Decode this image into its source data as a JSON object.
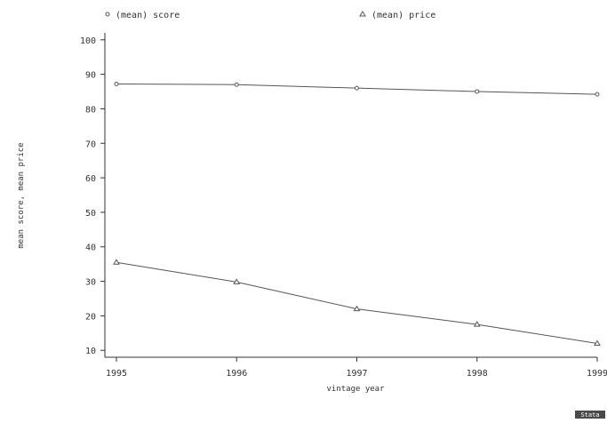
{
  "chart_data": {
    "type": "line",
    "xlabel": "vintage year",
    "ylabel": "mean score, mean price",
    "x": [
      1995,
      1996,
      1997,
      1998,
      1999
    ],
    "x_ticks": [
      "1995",
      "1996",
      "1997",
      "1998",
      "1999"
    ],
    "y_ticks": [
      "10",
      "20",
      "30",
      "40",
      "50",
      "60",
      "70",
      "80",
      "90",
      "100"
    ],
    "ylim": [
      8,
      102
    ],
    "xlim": [
      1995,
      1999
    ],
    "grid": false,
    "legend_position": "top",
    "series": [
      {
        "name": "(mean) score",
        "marker": "circle",
        "values": [
          87.2,
          87.0,
          86.0,
          85.0,
          84.2
        ]
      },
      {
        "name": "(mean) price",
        "marker": "triangle",
        "values": [
          35.5,
          29.8,
          22.0,
          17.5,
          12.0
        ]
      }
    ],
    "colors": {
      "line": "#555555",
      "text": "#333333"
    }
  },
  "logo": {
    "text": "Stata"
  }
}
